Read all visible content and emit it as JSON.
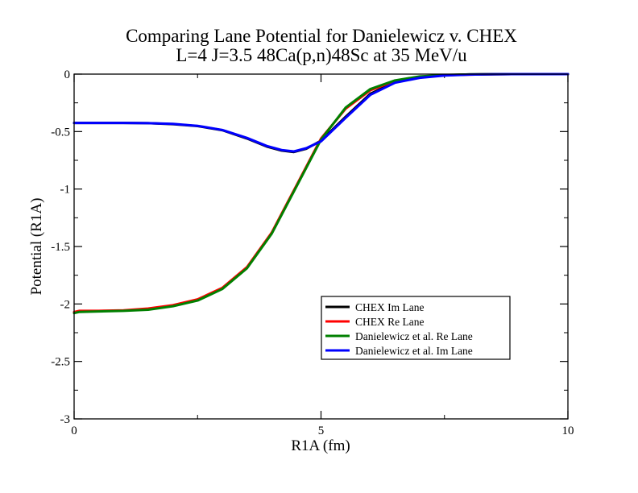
{
  "chart_data": {
    "type": "line",
    "title": "Comparing Lane Potential for Danielewicz v. CHEX",
    "subtitle": "L=4 J=3.5 48Ca(p,n)48Sc at 35 MeV/u",
    "xlabel": "R1A (fm)",
    "ylabel": "Potential (R1A)",
    "xlim": [
      0,
      10
    ],
    "ylim": [
      -3,
      0
    ],
    "x_ticks": [
      0,
      5,
      10
    ],
    "x_tick_labels": [
      "0",
      "5",
      "10"
    ],
    "y_ticks": [
      0,
      -0.5,
      -1,
      -1.5,
      -2,
      -2.5,
      -3
    ],
    "y_tick_labels": [
      "0",
      "-0.5",
      "-1",
      "-1.5",
      "-2",
      "-2.5",
      "-3"
    ],
    "grid": false,
    "legend_position": "lower-right",
    "series": [
      {
        "name": "CHEX Im Lane",
        "color": "#000000",
        "x": [
          0,
          0.5,
          1,
          1.5,
          2,
          2.5,
          3,
          3.5,
          3.9,
          4.2,
          4.45,
          4.7,
          5,
          5.5,
          6,
          6.5,
          7,
          7.5,
          8,
          8.5,
          9,
          10
        ],
        "y": [
          -0.425,
          -0.425,
          -0.425,
          -0.427,
          -0.435,
          -0.452,
          -0.488,
          -0.56,
          -0.63,
          -0.665,
          -0.678,
          -0.65,
          -0.58,
          -0.37,
          -0.17,
          -0.07,
          -0.03,
          -0.01,
          -0.003,
          -0.001,
          0,
          0
        ]
      },
      {
        "name": "CHEX Re Lane",
        "color": "#ff0000",
        "x": [
          0,
          0.1,
          0.5,
          1,
          1.5,
          2,
          2.5,
          3,
          3.5,
          4,
          4.5,
          5,
          5.5,
          6,
          6.5,
          7,
          7.5,
          8,
          8.5,
          9,
          10
        ],
        "y": [
          -2.07,
          -2.06,
          -2.06,
          -2.055,
          -2.04,
          -2.01,
          -1.96,
          -1.86,
          -1.68,
          -1.38,
          -0.97,
          -0.56,
          -0.3,
          -0.14,
          -0.06,
          -0.025,
          -0.01,
          -0.004,
          -0.001,
          0,
          0
        ]
      },
      {
        "name": "Danielewicz et al. Re Lane",
        "color": "#008000",
        "x": [
          0,
          0.1,
          0.5,
          1,
          1.5,
          2,
          2.5,
          3,
          3.5,
          4,
          4.5,
          5,
          5.5,
          6,
          6.5,
          7,
          7.5,
          8,
          8.5,
          9,
          10
        ],
        "y": [
          -2.08,
          -2.07,
          -2.065,
          -2.06,
          -2.05,
          -2.02,
          -1.97,
          -1.87,
          -1.69,
          -1.39,
          -0.98,
          -0.57,
          -0.29,
          -0.13,
          -0.055,
          -0.02,
          -0.008,
          -0.003,
          -0.001,
          0,
          0
        ]
      },
      {
        "name": "Danielewicz et al. Im Lane",
        "color": "#0000ff",
        "x": [
          0,
          0.5,
          1,
          1.5,
          2,
          2.5,
          3,
          3.5,
          3.9,
          4.2,
          4.45,
          4.7,
          5,
          5.5,
          6,
          6.5,
          7,
          7.5,
          8,
          8.5,
          9,
          10
        ],
        "y": [
          -0.425,
          -0.425,
          -0.425,
          -0.427,
          -0.433,
          -0.45,
          -0.486,
          -0.555,
          -0.625,
          -0.66,
          -0.673,
          -0.645,
          -0.585,
          -0.38,
          -0.18,
          -0.075,
          -0.032,
          -0.012,
          -0.004,
          -0.001,
          0,
          0
        ]
      }
    ]
  }
}
